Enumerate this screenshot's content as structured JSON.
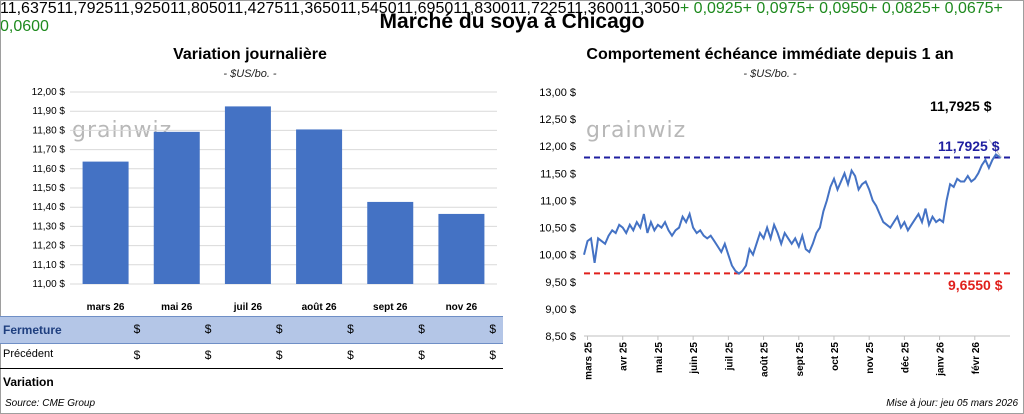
{
  "title": "Marché du soya à Chicago",
  "left": {
    "subtitle": "Variation journalière",
    "unit": "- $US/bo. -",
    "logo": "grainwiz"
  },
  "right": {
    "subtitle": "Comportement échéance immédiate depuis 1 an",
    "unit": "- $US/bo. -",
    "logo": "grainwiz",
    "last_label": "11,7925 $",
    "high_label": "11,7925 $",
    "low_label": "9,6550 $"
  },
  "table": {
    "row_fermeture": "Fermeture",
    "row_precedent": "Précédent",
    "row_variation": "Variation",
    "currency": "$",
    "fermeture": [
      "11,6375",
      "11,7925",
      "11,9250",
      "11,8050",
      "11,4275",
      "11,3650"
    ],
    "precedent": [
      "11,5450",
      "11,6950",
      "11,8300",
      "11,7225",
      "11,3600",
      "11,3050"
    ],
    "variation": [
      "+ 0,0925",
      "+ 0,0975",
      "+ 0,0950",
      "+ 0,0825",
      "+ 0,0675",
      "+ 0,0600"
    ]
  },
  "footer": {
    "source": "Source: CME Group",
    "update": "Mise à jour: jeu 05 mars 2026"
  },
  "colors": {
    "bar": "#4472c4",
    "line": "#4472c4",
    "high_line": "#1f1fa0",
    "low_line": "#e0201c",
    "table_highlight": "#b4c6e7",
    "variation_positive": "#1e8a1e"
  },
  "chart_data": [
    {
      "type": "bar",
      "title": "Variation journalière",
      "categories": [
        "mars 26",
        "mai 26",
        "juil 26",
        "août 26",
        "sept 26",
        "nov 26"
      ],
      "values": [
        11.6375,
        11.7925,
        11.925,
        11.805,
        11.4275,
        11.365
      ],
      "ylim": [
        11.0,
        12.0
      ],
      "yticks": [
        "11,00 $",
        "11,10 $",
        "11,20 $",
        "11,30 $",
        "11,40 $",
        "11,50 $",
        "11,60 $",
        "11,70 $",
        "11,80 $",
        "11,90 $",
        "12,00 $"
      ],
      "grid": true
    },
    {
      "type": "line",
      "title": "Comportement échéance immédiate depuis 1 an",
      "ylim": [
        8.5,
        13.0
      ],
      "yticks": [
        "8,50 $",
        "9,00 $",
        "9,50 $",
        "10,00 $",
        "10,50 $",
        "11,00 $",
        "11,50 $",
        "12,00 $",
        "12,50 $",
        "13,00 $"
      ],
      "xticks": [
        "mars 25",
        "avr 25",
        "mai 25",
        "juin 25",
        "juil 25",
        "août 25",
        "sept 25",
        "oct 25",
        "nov 25",
        "déc 25",
        "janv 26",
        "févr 26"
      ],
      "reference_lines": [
        {
          "value": 11.7925,
          "style": "dashed"
        },
        {
          "value": 9.655,
          "style": "dashed"
        }
      ],
      "series": [
        {
          "x_months": [
            0,
            0.1,
            0.2,
            0.3,
            0.4,
            0.5,
            0.6,
            0.7,
            0.8,
            0.9,
            1.0,
            1.1,
            1.2,
            1.3,
            1.4,
            1.5,
            1.6,
            1.7,
            1.8,
            1.9,
            2.0,
            2.1,
            2.2,
            2.3,
            2.4,
            2.5,
            2.6,
            2.7,
            2.8,
            2.9,
            3.0,
            3.1,
            3.2,
            3.3,
            3.4,
            3.5,
            3.6,
            3.7,
            3.8,
            3.9,
            4.0,
            4.1,
            4.2,
            4.3,
            4.4,
            4.5,
            4.6,
            4.7,
            4.8,
            4.9,
            5.0,
            5.1,
            5.2,
            5.3,
            5.4,
            5.5,
            5.6,
            5.7,
            5.8,
            5.9,
            6.0,
            6.1,
            6.2,
            6.3,
            6.4,
            6.5,
            6.6,
            6.7,
            6.8,
            6.9,
            7.0,
            7.1,
            7.2,
            7.3,
            7.4,
            7.5,
            7.6,
            7.7,
            7.8,
            7.9,
            8.0,
            8.1,
            8.2,
            8.3,
            8.4,
            8.5,
            8.6,
            8.7,
            8.8,
            8.9,
            9.0,
            9.1,
            9.2,
            9.3,
            9.4,
            9.5,
            9.6,
            9.7,
            9.8,
            9.9,
            10.0,
            10.1,
            10.2,
            10.3,
            10.4,
            10.5,
            10.6,
            10.7,
            10.8,
            10.9,
            11.0,
            11.1,
            11.2,
            11.3,
            11.4,
            11.5,
            11.6,
            11.7,
            11.8,
            11.85
          ],
          "values": [
            10.0,
            10.25,
            10.3,
            9.85,
            10.3,
            10.25,
            10.2,
            10.35,
            10.45,
            10.4,
            10.55,
            10.5,
            10.4,
            10.55,
            10.45,
            10.6,
            10.5,
            10.75,
            10.4,
            10.6,
            10.45,
            10.55,
            10.5,
            10.6,
            10.45,
            10.35,
            10.45,
            10.5,
            10.7,
            10.6,
            10.75,
            10.5,
            10.4,
            10.45,
            10.35,
            10.3,
            10.35,
            10.25,
            10.15,
            10.05,
            10.2,
            10.0,
            9.8,
            9.7,
            9.65,
            9.7,
            9.8,
            10.1,
            10.0,
            10.2,
            10.4,
            10.3,
            10.5,
            10.3,
            10.55,
            10.4,
            10.2,
            10.4,
            10.3,
            10.2,
            10.3,
            10.15,
            10.35,
            10.1,
            10.05,
            10.2,
            10.4,
            10.5,
            10.8,
            11.0,
            11.25,
            11.4,
            11.2,
            11.35,
            11.5,
            11.3,
            11.55,
            11.45,
            11.2,
            11.3,
            11.35,
            11.2,
            11.0,
            10.9,
            10.75,
            10.6,
            10.55,
            10.5,
            10.6,
            10.7,
            10.5,
            10.6,
            10.45,
            10.55,
            10.65,
            10.75,
            10.6,
            10.85,
            10.55,
            10.7,
            10.6,
            10.65,
            10.6,
            11.0,
            11.3,
            11.25,
            11.4,
            11.35,
            11.35,
            11.45,
            11.35,
            11.4,
            11.5,
            11.65,
            11.75,
            11.6,
            11.75,
            11.85,
            11.8,
            11.7925
          ]
        }
      ]
    }
  ]
}
